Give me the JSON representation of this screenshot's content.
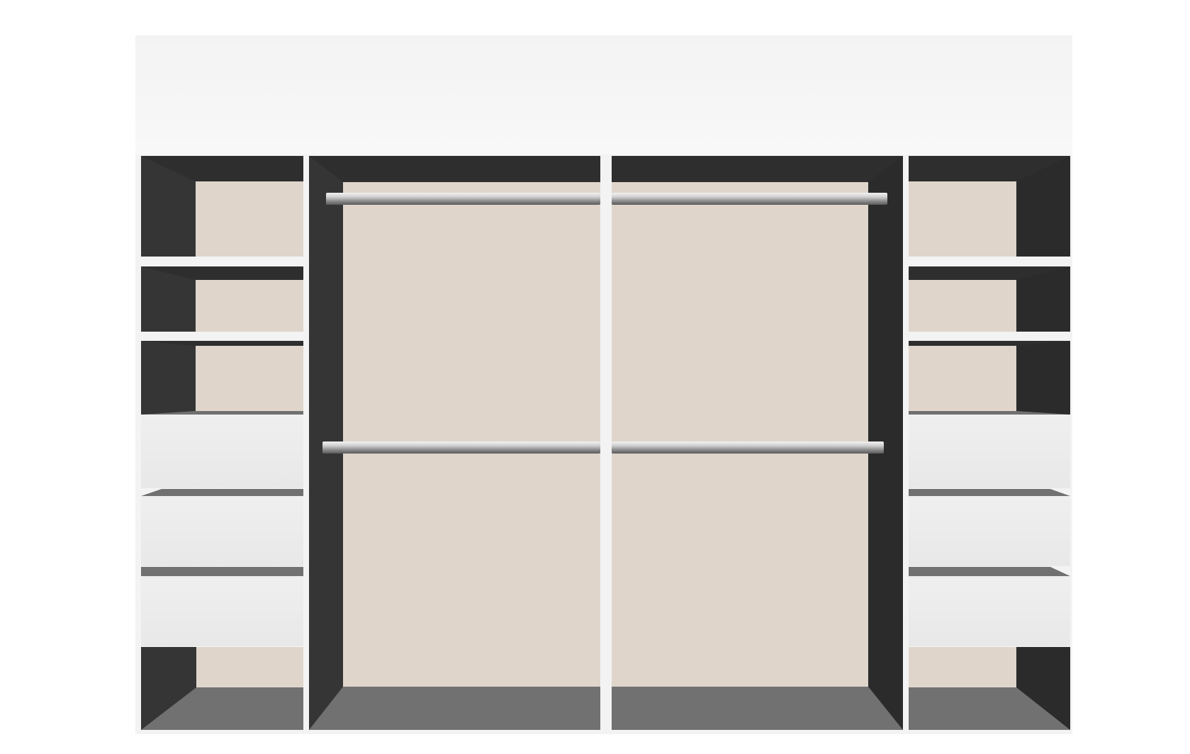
{
  "scene": {
    "subject": "wardrobe-interior-configurator-preview",
    "sections": [
      {
        "id": "left-shelving",
        "type": "shelves-and-drawers",
        "open_compartments": 4,
        "drawers": 3
      },
      {
        "id": "center-left-hanging",
        "type": "double-hanging-rail",
        "rails": 2
      },
      {
        "id": "center-right-hanging",
        "type": "double-hanging-rail",
        "rails": 2
      },
      {
        "id": "right-shelving",
        "type": "shelves-and-drawers",
        "open_compartments": 4,
        "drawers": 3
      }
    ]
  },
  "colors": {
    "background": "#ffffff",
    "carcass_white": "#f3f3f3",
    "interior_dark": "#2e2e2e",
    "interior_side_dark": "#353535",
    "back_panel": "#dfd5cb",
    "floor_grey": "#717171",
    "drawer_front": "#ececec",
    "rail_light": "#e6e6e6",
    "rail_dark": "#5e5e5e"
  },
  "icons": [
    "hanging-rail-icon"
  ]
}
